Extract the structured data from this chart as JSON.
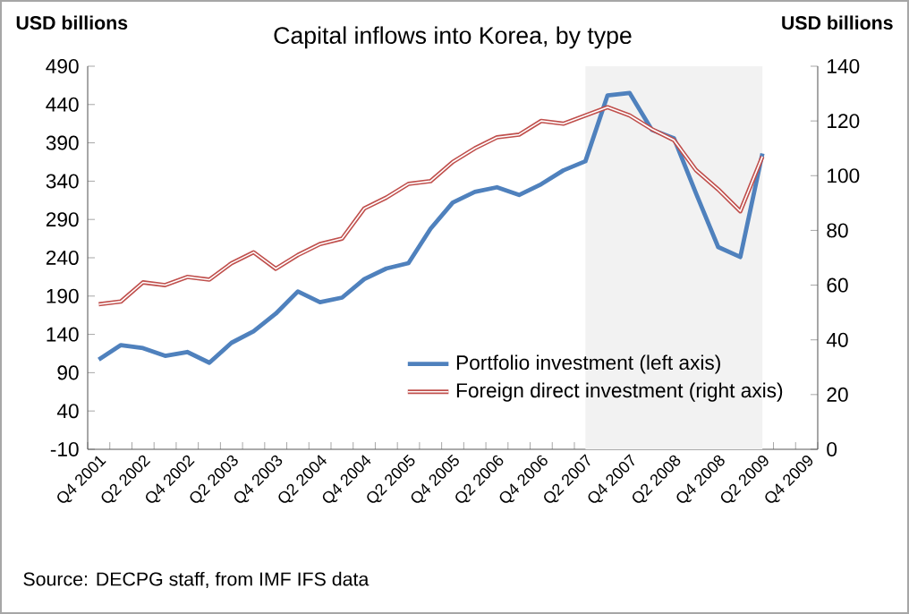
{
  "chart_data": {
    "type": "line",
    "title": "Capital inflows into Korea, by type",
    "ylabel": "USD billions",
    "y2label": "USD billions",
    "categories": [
      "Q4 2001",
      null,
      "Q2 2002",
      null,
      "Q4 2002",
      null,
      "Q2 2003",
      null,
      "Q4 2003",
      null,
      "Q2 2004",
      null,
      "Q4 2004",
      null,
      "Q2 2005",
      null,
      "Q4 2005",
      null,
      "Q2 2006",
      null,
      "Q4 2006",
      null,
      "Q2 2007",
      null,
      "Q4 2007",
      null,
      "Q2 2008",
      null,
      "Q4 2008",
      null,
      "Q2 2009",
      null,
      "Q4 2009"
    ],
    "series": [
      {
        "name": "Portfolio investment (left axis)",
        "color": "#4f81bd",
        "values": [
          107,
          126,
          122,
          112,
          117,
          103,
          129,
          144,
          167,
          196,
          182,
          188,
          212,
          226,
          233,
          278,
          312,
          326,
          332,
          322,
          336,
          354,
          366,
          452,
          455,
          407,
          396,
          324,
          254,
          241,
          376,
          null,
          null
        ]
      },
      {
        "name": "Foreign direct investment (right axis)",
        "color": "#c0504d",
        "axis": "y2",
        "values": [
          53,
          54,
          61,
          60,
          63,
          62,
          68,
          72,
          66,
          71,
          75,
          77,
          88,
          92,
          97,
          98,
          105,
          110,
          114,
          115,
          120,
          119,
          122,
          125,
          122,
          117,
          113,
          102,
          95,
          87,
          107,
          null,
          null
        ]
      }
    ],
    "ylim": [
      -10,
      490
    ],
    "yticks": [
      -10,
      40,
      90,
      140,
      190,
      240,
      290,
      340,
      390,
      440,
      490
    ],
    "y2lim": [
      0,
      140
    ],
    "y2ticks": [
      0,
      20,
      40,
      60,
      80,
      100,
      120,
      140
    ],
    "bands": [
      {
        "axis": "x",
        "from": "Q2 2007",
        "to": "Q2 2009",
        "color": "#f2f2f2"
      }
    ],
    "legend": "bottom right",
    "annotations": [
      "Source: DECPG staff, from IMF IFS data"
    ]
  }
}
